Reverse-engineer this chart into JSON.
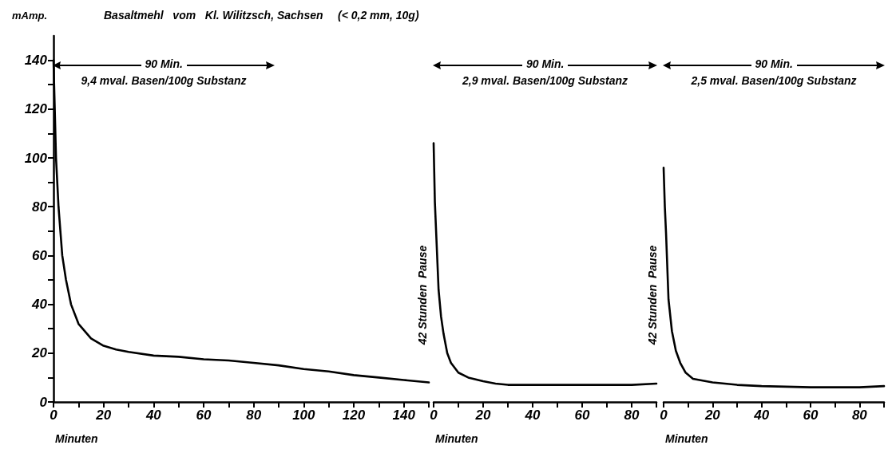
{
  "chart_data": [
    {
      "type": "line",
      "title": "Basaltmehl   vom   Kl. Wilitzsch, Sachsen",
      "subtitle": "(< 0,2 mm, 10g)",
      "ylabel": "mAmp.",
      "xlabel": "Minuten",
      "x": [
        0,
        0.5,
        1,
        2,
        3.5,
        5,
        7,
        10,
        15,
        20,
        25,
        30,
        40,
        50,
        60,
        70,
        80,
        90,
        100,
        110,
        120,
        130,
        140,
        150
      ],
      "series": [
        {
          "color": "#000000",
          "values": [
            140,
            120,
            100,
            80,
            60,
            50,
            40,
            32,
            26,
            23,
            21.5,
            20.5,
            19,
            18.5,
            17.5,
            17,
            16,
            15,
            13.5,
            12.5,
            11,
            10,
            9,
            8
          ]
        }
      ],
      "xlim": [
        0,
        150
      ],
      "ylim": [
        0,
        150
      ],
      "xticks": [
        0,
        {
          "value": 10,
          "label": null
        },
        20,
        {
          "value": 30,
          "label": null
        },
        40,
        {
          "value": 50,
          "label": null
        },
        60,
        {
          "value": 70,
          "label": null
        },
        80,
        {
          "value": 90,
          "label": null
        },
        100,
        {
          "value": 110,
          "label": null
        },
        120,
        {
          "value": 130,
          "label": null
        },
        140,
        {
          "value": 150,
          "label": null
        }
      ],
      "yticks": [
        0,
        {
          "value": 10,
          "label": null
        },
        20,
        {
          "value": 30,
          "label": null
        },
        40,
        {
          "value": 50,
          "label": null
        },
        60,
        {
          "value": 70,
          "label": null
        },
        80,
        {
          "value": 90,
          "label": null
        },
        100,
        {
          "value": 110,
          "label": null
        },
        120,
        {
          "value": 130,
          "label": null
        },
        140
      ],
      "annotations": [
        "90 Min.",
        "9,4 mval. Basen/100g Substanz"
      ],
      "marker": "none",
      "line_style": "solid"
    },
    {
      "type": "line",
      "xlabel": "Minuten",
      "x": [
        0,
        0.5,
        2,
        3,
        4,
        5.5,
        7,
        10,
        14,
        20,
        25,
        30,
        40,
        60,
        80,
        90
      ],
      "series": [
        {
          "color": "#000000",
          "values": [
            106,
            82,
            46,
            35,
            28,
            20,
            16,
            12,
            10,
            8.5,
            7.5,
            7,
            7,
            7,
            7,
            7.5
          ]
        }
      ],
      "xlim": [
        0,
        90
      ],
      "ylim": [
        0,
        140
      ],
      "yticks": [
        0,
        20,
        40,
        60,
        80,
        100,
        120,
        140
      ],
      "xticks": [
        0,
        {
          "value": 10,
          "label": null
        },
        20,
        {
          "value": 30,
          "label": null
        },
        40,
        {
          "value": 50,
          "label": null
        },
        60,
        {
          "value": 70,
          "label": null
        },
        80,
        {
          "value": 90,
          "label": null
        }
      ],
      "annotations": [
        "90 Min.",
        "2,9 mval. Basen/100g Substanz",
        "42 Stunden  Pause"
      ],
      "tick_labels": "x",
      "marker": "none",
      "line_style": "solid"
    },
    {
      "type": "line",
      "xlabel": "Minuten",
      "x": [
        0,
        0.5,
        1,
        2,
        3.4,
        5,
        6.8,
        9,
        12,
        20,
        30,
        40,
        60,
        80,
        90
      ],
      "series": [
        {
          "color": "#000000",
          "values": [
            96,
            80,
            69,
            42,
            29,
            21,
            16,
            12,
            9.5,
            8,
            7,
            6.5,
            6,
            6,
            6.5
          ]
        }
      ],
      "xlim": [
        0,
        90
      ],
      "ylim": [
        0,
        140
      ],
      "yticks": [
        0,
        20,
        40,
        60,
        80,
        100,
        120,
        140
      ],
      "xticks": [
        0,
        {
          "value": 10,
          "label": null
        },
        20,
        {
          "value": 30,
          "label": null
        },
        40,
        {
          "value": 50,
          "label": null
        },
        60,
        {
          "value": 70,
          "label": null
        },
        80,
        {
          "value": 90,
          "label": null
        }
      ],
      "annotations": [
        "90 Min.",
        "2,5 mval. Basen/100g Substanz",
        "42 Stunden  Pause"
      ],
      "tick_labels": "x",
      "marker": "none",
      "line_style": "solid"
    }
  ]
}
